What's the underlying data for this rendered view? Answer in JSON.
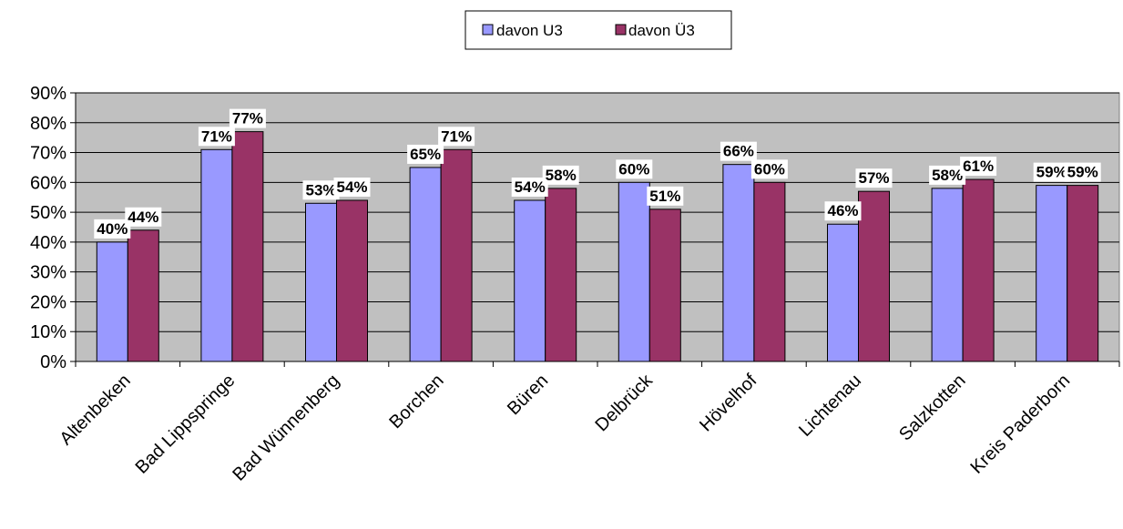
{
  "chart_data": {
    "type": "bar",
    "categories": [
      "Altenbeken",
      "Bad Lippspringe",
      "Bad Wünnenberg",
      "Borchen",
      "Büren",
      "Delbrück",
      "Hövelhof",
      "Lichtenau",
      "Salzkotten",
      "Kreis Paderborn"
    ],
    "series": [
      {
        "name": "davon U3",
        "color": "#9999ff",
        "values": [
          40,
          71,
          53,
          65,
          54,
          60,
          66,
          46,
          58,
          59
        ],
        "labels": [
          "40%",
          "71%",
          "53%",
          "65%",
          "54%",
          "60%",
          "66%",
          "46%",
          "58%",
          "59%"
        ]
      },
      {
        "name": "davon Ü3",
        "color": "#993366",
        "values": [
          44,
          77,
          54,
          71,
          58,
          51,
          60,
          57,
          61,
          59
        ],
        "labels": [
          "44%",
          "77%",
          "54%",
          "71%",
          "58%",
          "51%",
          "60%",
          "57%",
          "61%",
          "59%"
        ]
      }
    ],
    "ylim": [
      0,
      90
    ],
    "yticks": [
      0,
      10,
      20,
      30,
      40,
      50,
      60,
      70,
      80,
      90
    ],
    "ytick_labels": [
      "0%",
      "10%",
      "20%",
      "30%",
      "40%",
      "50%",
      "60%",
      "70%",
      "80%",
      "90%"
    ],
    "grid": true,
    "plot_background": "#c0c0c0",
    "legend_position": "top-center"
  }
}
